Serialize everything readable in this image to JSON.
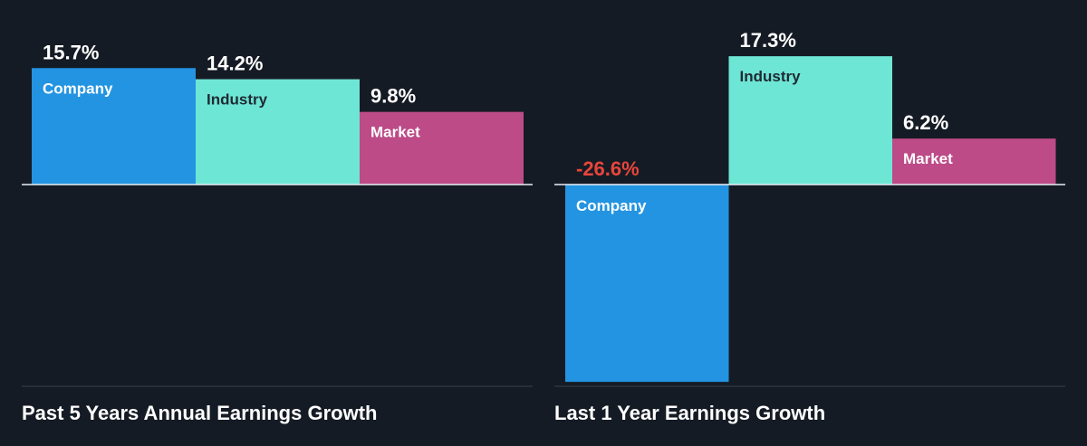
{
  "colors": {
    "background": "#151b24",
    "company": "#2394e1",
    "industry": "#6ee6d5",
    "market": "#bc4b87",
    "positive_value_text": "#ffffff",
    "negative_value_text": "#e8453c",
    "axis": "#e9eef4",
    "baseline": "#3a404a"
  },
  "chart_data": [
    {
      "type": "bar",
      "title": "Past 5 Years Annual Earnings Growth",
      "categories": [
        "Company",
        "Industry",
        "Market"
      ],
      "values": [
        15.7,
        14.2,
        9.8
      ],
      "value_labels": [
        "15.7%",
        "14.2%",
        "9.8%"
      ],
      "unit": "%",
      "ylim": [
        -27.5,
        18.2
      ],
      "grid": false,
      "legend": "none (labels inside bars)"
    },
    {
      "type": "bar",
      "title": "Last 1 Year Earnings Growth",
      "categories": [
        "Company",
        "Industry",
        "Market"
      ],
      "values": [
        -26.6,
        17.3,
        6.2
      ],
      "value_labels": [
        "-26.6%",
        "17.3%",
        "6.2%"
      ],
      "unit": "%",
      "ylim": [
        -27.5,
        18.2
      ],
      "grid": false,
      "legend": "none (labels inside bars)"
    }
  ]
}
